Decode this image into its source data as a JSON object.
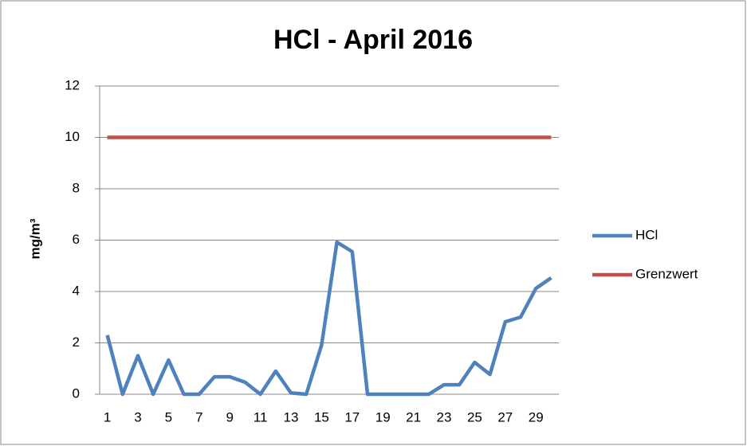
{
  "chart_data": {
    "type": "line",
    "title": "HCl - April 2016",
    "y_label": "mg/m³",
    "categories": [
      1,
      null,
      3,
      null,
      5,
      null,
      7,
      null,
      9,
      null,
      11,
      null,
      13,
      null,
      15,
      null,
      17,
      null,
      19,
      null,
      21,
      null,
      23,
      null,
      25,
      null,
      27,
      null,
      29,
      null
    ],
    "series": [
      {
        "name": "HCl",
        "color": "#4f81bd",
        "values": [
          2.3,
          0,
          1.5,
          0,
          1.33,
          0,
          0,
          0.68,
          0.68,
          0.47,
          0,
          0.9,
          0.05,
          0,
          1.92,
          5.92,
          5.55,
          0,
          0,
          0,
          0,
          0,
          0.37,
          0.37,
          1.24,
          0.77,
          2.82,
          3.0,
          4.12,
          4.53
        ]
      },
      {
        "name": "Grenzwert",
        "color": "#c0504d",
        "values": [
          10,
          10,
          10,
          10,
          10,
          10,
          10,
          10,
          10,
          10,
          10,
          10,
          10,
          10,
          10,
          10,
          10,
          10,
          10,
          10,
          10,
          10,
          10,
          10,
          10,
          10,
          10,
          10,
          10,
          10
        ]
      }
    ],
    "ylim": [
      0,
      12
    ],
    "yticks": [
      0,
      2,
      4,
      6,
      8,
      10,
      12
    ],
    "grid": true,
    "legend": "right"
  }
}
